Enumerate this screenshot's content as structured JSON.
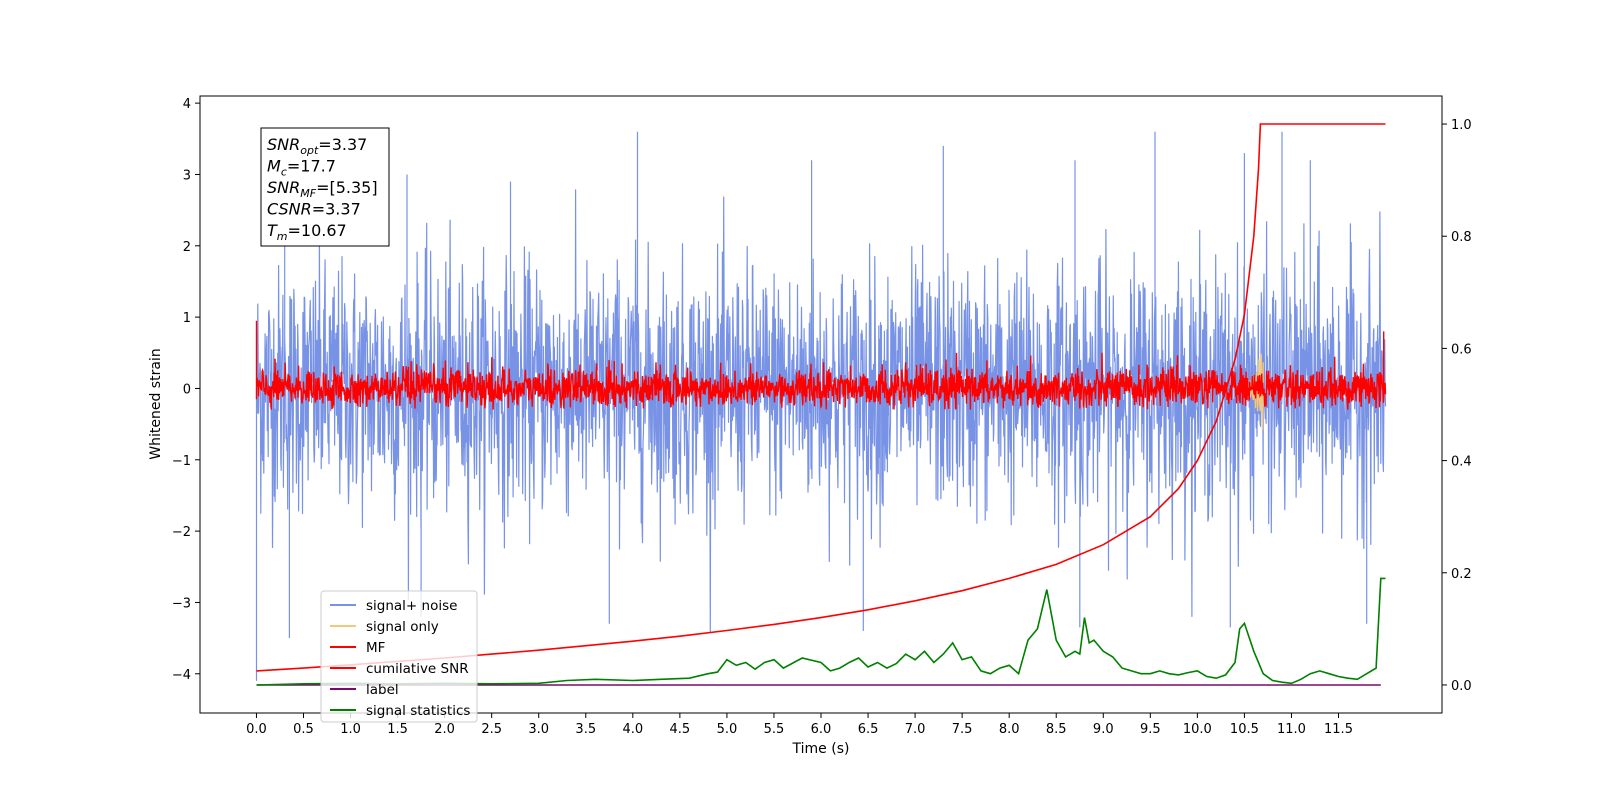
{
  "chart_data": {
    "type": "line",
    "xlabel": "Time (s)",
    "ylabel": "Whitened strain",
    "ylabel_right": "",
    "xlim": [
      -0.6,
      12.6
    ],
    "ylim": [
      -4.55,
      4.1
    ],
    "ylim_right": [
      -0.05,
      1.05
    ],
    "x_ticks": [
      "0.0",
      "0.5",
      "1.0",
      "1.5",
      "2.0",
      "2.5",
      "3.0",
      "3.5",
      "4.0",
      "4.5",
      "5.0",
      "5.5",
      "6.0",
      "6.5",
      "7.0",
      "7.5",
      "8.0",
      "8.5",
      "9.0",
      "9.5",
      "10.0",
      "10.5",
      "11.0",
      "11.5"
    ],
    "x_tick_values": [
      0,
      0.5,
      1,
      1.5,
      2,
      2.5,
      3,
      3.5,
      4,
      4.5,
      5,
      5.5,
      6,
      6.5,
      7,
      7.5,
      8,
      8.5,
      9,
      9.5,
      10,
      10.5,
      11,
      11.5
    ],
    "y_ticks": [
      "−4",
      "−3",
      "−2",
      "−1",
      "0",
      "1",
      "2",
      "3",
      "4"
    ],
    "y_tick_values": [
      -4,
      -3,
      -2,
      -1,
      0,
      1,
      2,
      3,
      4
    ],
    "y_right_ticks": [
      "0.0",
      "0.2",
      "0.4",
      "0.6",
      "0.8",
      "1.0"
    ],
    "y_right_tick_values": [
      0,
      0.2,
      0.4,
      0.6,
      0.8,
      1.0
    ],
    "annotation": [
      {
        "base": "SNR",
        "sub": "opt",
        "rest": "=3.37"
      },
      {
        "base": "M",
        "sub": "c",
        "rest": "=17.7"
      },
      {
        "base": "SNR",
        "sub": "MF",
        "rest": "=[5.35]"
      },
      {
        "base": "CSNR",
        "sub": "",
        "rest": "=3.37"
      },
      {
        "base": "T",
        "sub": "m",
        "rest": "=10.67"
      }
    ],
    "legend_position": "lower-left",
    "series": [
      {
        "name": "signal+ noise",
        "color": "#7893e6",
        "axis": "left",
        "x_range": [
          0,
          12.0
        ],
        "noise_std": 0.85,
        "y_min": -4.1,
        "y_max": 3.6
      },
      {
        "name": "signal only",
        "color": "#f5c77a",
        "axis": "left",
        "x_range": [
          10.4,
          10.7
        ],
        "y_min": -0.6,
        "y_max": 0.65
      },
      {
        "name": "MF",
        "color": "#ff0000",
        "axis": "left",
        "x_range": [
          0,
          12.0
        ],
        "noise_std": 0.14,
        "y_min": -0.3,
        "y_max": 0.8
      },
      {
        "name": "cumilative SNR",
        "color": "#ff0000",
        "axis": "right",
        "x": [
          0,
          0.5,
          1,
          1.5,
          2,
          2.5,
          3,
          3.5,
          4,
          4.5,
          5,
          5.5,
          6,
          6.5,
          7,
          7.5,
          8,
          8.5,
          9,
          9.5,
          9.8,
          10,
          10.2,
          10.4,
          10.5,
          10.6,
          10.65,
          10.67,
          11,
          11.5,
          12
        ],
        "values": [
          0.025,
          0.03,
          0.036,
          0.042,
          0.048,
          0.055,
          0.062,
          0.07,
          0.078,
          0.087,
          0.097,
          0.108,
          0.12,
          0.134,
          0.15,
          0.168,
          0.19,
          0.215,
          0.25,
          0.3,
          0.35,
          0.4,
          0.47,
          0.58,
          0.66,
          0.8,
          0.92,
          1.0,
          1.0,
          1.0,
          1.0
        ]
      },
      {
        "name": "label",
        "color": "#7a0a6f",
        "axis": "right",
        "x": [
          0,
          11.95
        ],
        "values": [
          0,
          0
        ]
      },
      {
        "name": "signal statistics",
        "color": "#008000",
        "axis": "right",
        "x": [
          0,
          0.5,
          1,
          1.5,
          2,
          2.5,
          3,
          3.3,
          3.6,
          4,
          4.3,
          4.6,
          4.8,
          4.9,
          5,
          5.1,
          5.2,
          5.3,
          5.4,
          5.5,
          5.6,
          5.8,
          6,
          6.1,
          6.2,
          6.3,
          6.4,
          6.5,
          6.6,
          6.7,
          6.8,
          6.9,
          7,
          7.1,
          7.2,
          7.3,
          7.4,
          7.5,
          7.6,
          7.7,
          7.8,
          7.9,
          8,
          8.1,
          8.2,
          8.3,
          8.4,
          8.5,
          8.6,
          8.7,
          8.75,
          8.8,
          8.85,
          8.9,
          9,
          9.1,
          9.2,
          9.3,
          9.4,
          9.5,
          9.6,
          9.7,
          9.8,
          9.9,
          10,
          10.1,
          10.2,
          10.3,
          10.4,
          10.45,
          10.5,
          10.55,
          10.6,
          10.7,
          10.8,
          10.9,
          11,
          11.1,
          11.2,
          11.3,
          11.4,
          11.5,
          11.6,
          11.7,
          11.8,
          11.9,
          11.95,
          12
        ],
        "values": [
          0.0,
          0.002,
          0.003,
          0.002,
          0.003,
          0.002,
          0.003,
          0.008,
          0.01,
          0.008,
          0.01,
          0.012,
          0.02,
          0.023,
          0.045,
          0.035,
          0.04,
          0.028,
          0.04,
          0.045,
          0.03,
          0.048,
          0.04,
          0.025,
          0.03,
          0.04,
          0.048,
          0.032,
          0.04,
          0.03,
          0.038,
          0.055,
          0.045,
          0.06,
          0.04,
          0.055,
          0.075,
          0.045,
          0.05,
          0.025,
          0.02,
          0.03,
          0.035,
          0.02,
          0.08,
          0.1,
          0.17,
          0.08,
          0.05,
          0.06,
          0.055,
          0.12,
          0.075,
          0.08,
          0.06,
          0.05,
          0.03,
          0.025,
          0.02,
          0.02,
          0.025,
          0.02,
          0.018,
          0.022,
          0.025,
          0.015,
          0.012,
          0.018,
          0.04,
          0.1,
          0.11,
          0.085,
          0.06,
          0.02,
          0.008,
          0.005,
          0.003,
          0.01,
          0.02,
          0.025,
          0.02,
          0.015,
          0.012,
          0.01,
          0.02,
          0.03,
          0.19,
          0.19
        ]
      }
    ]
  }
}
